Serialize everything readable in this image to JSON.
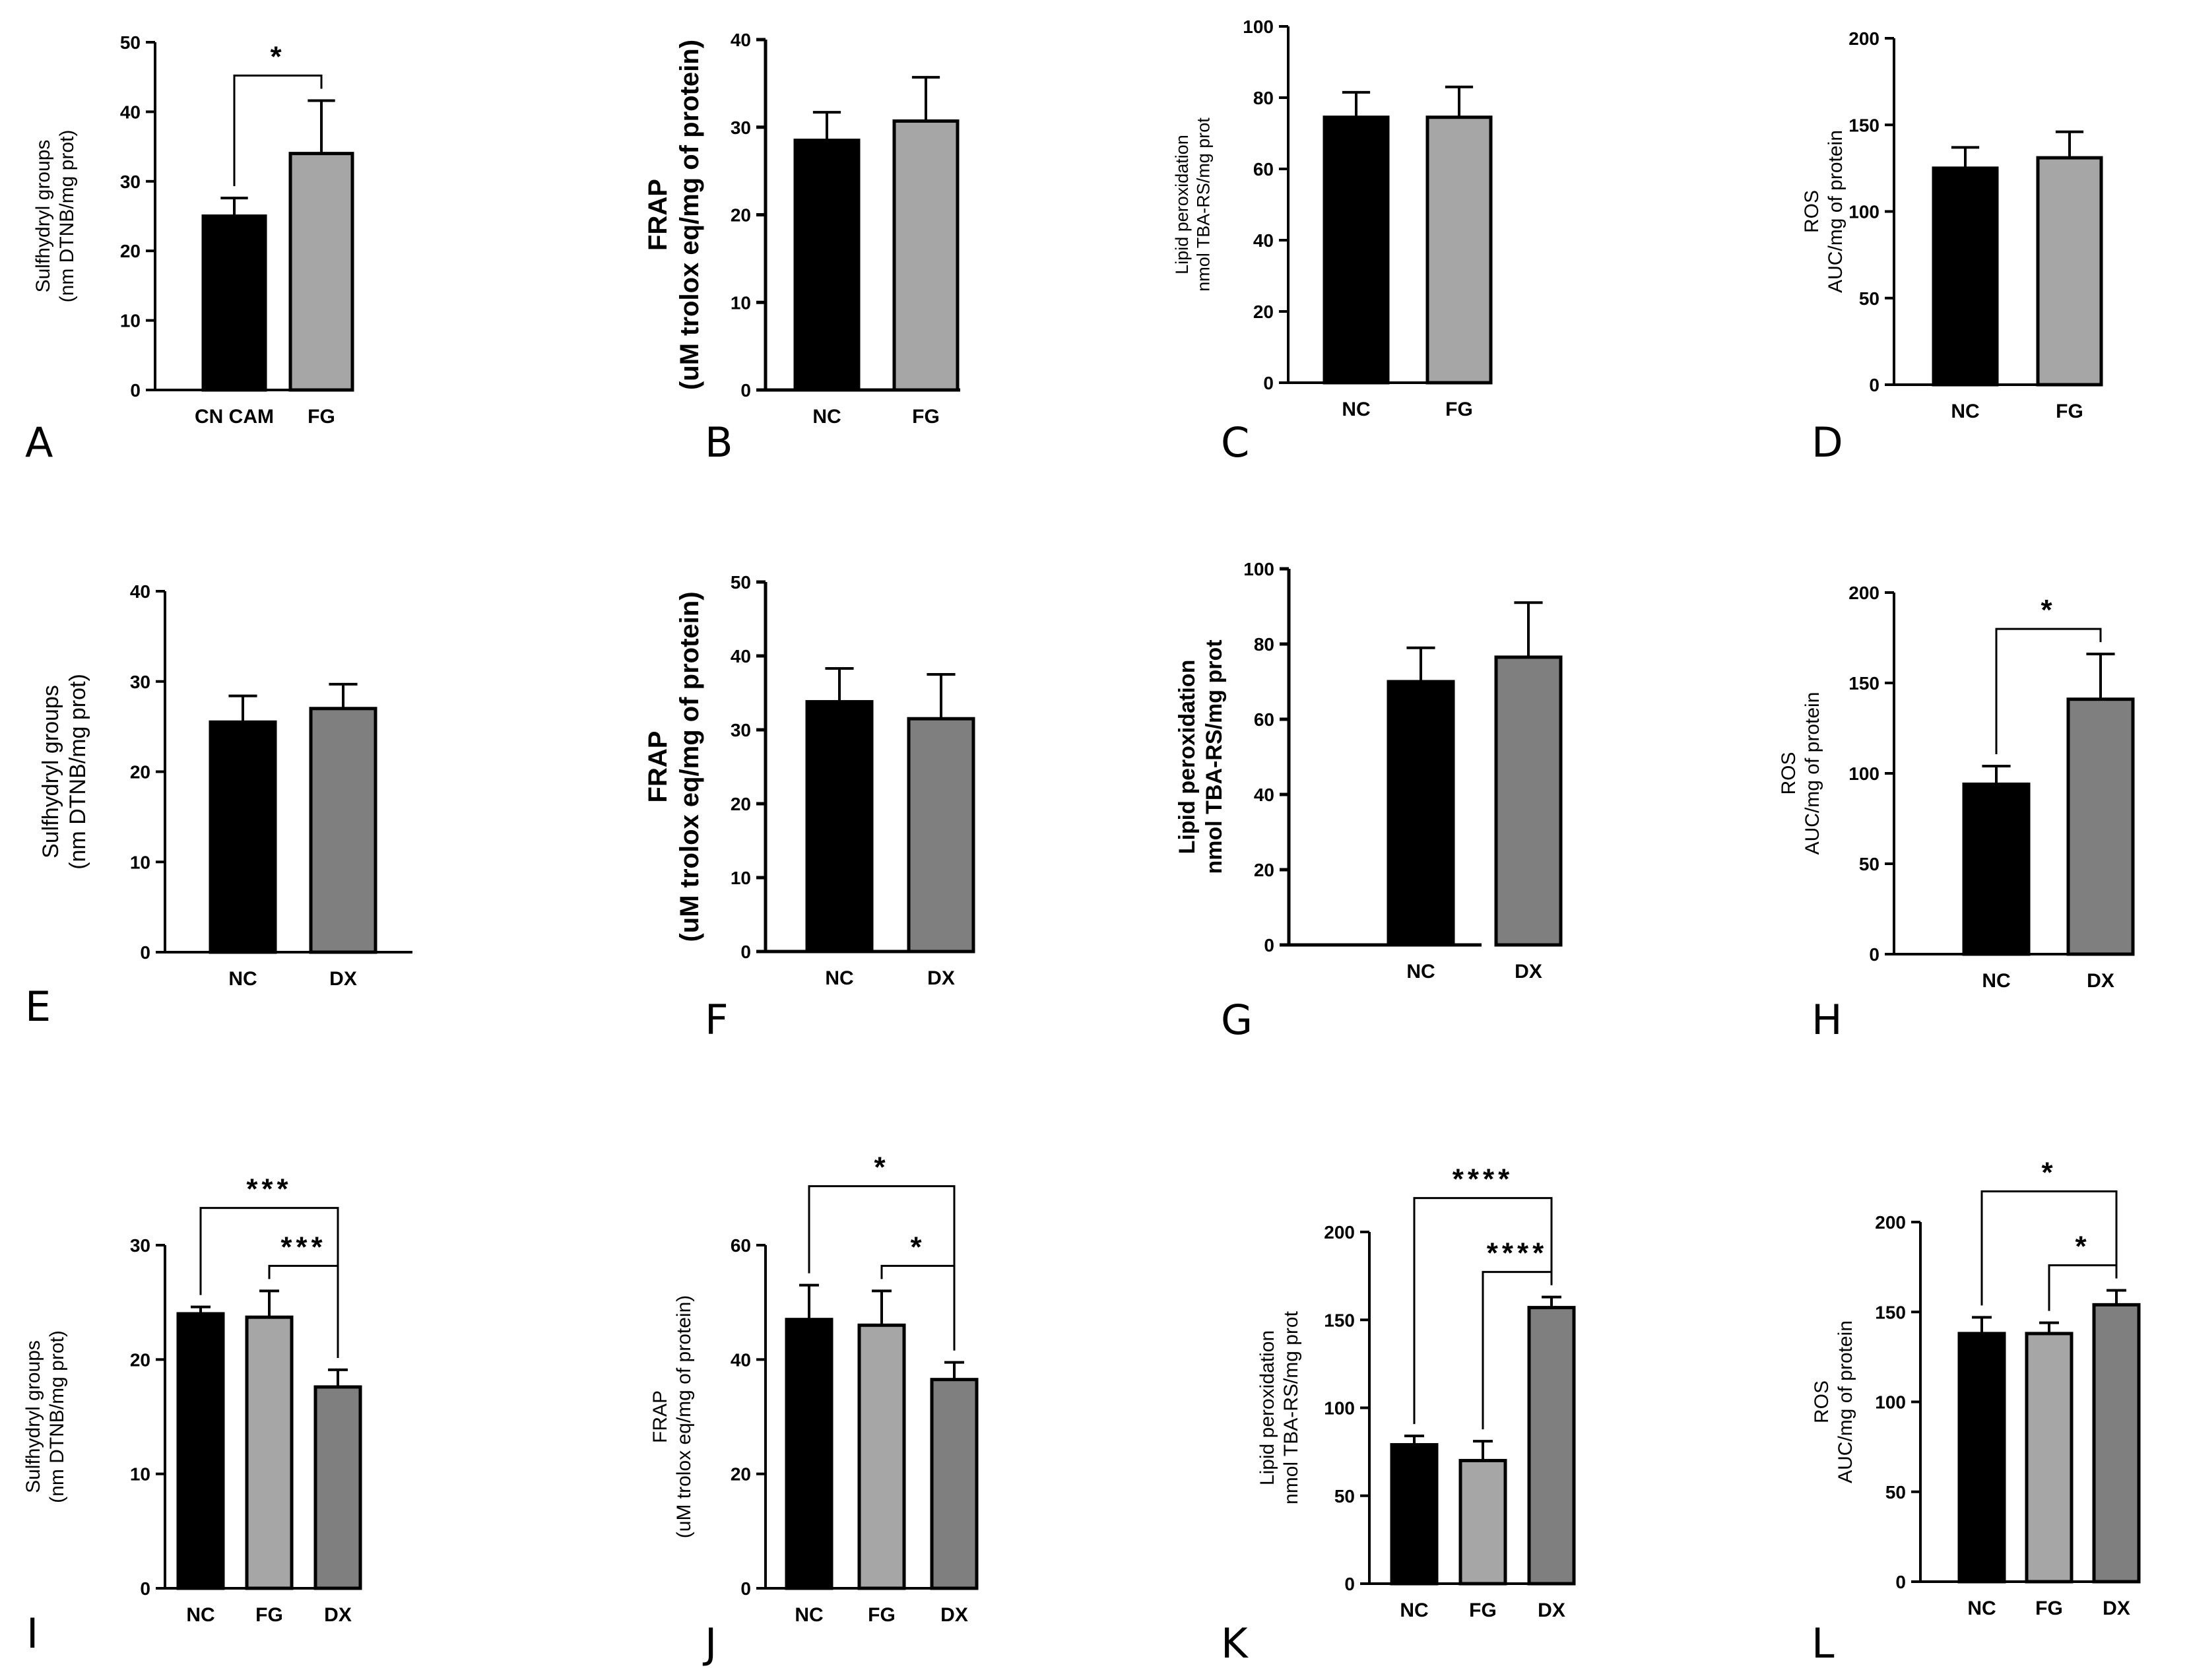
{
  "colors": {
    "NC": "#000000",
    "CN CAM": "#000000",
    "FG": "#a6a6a6",
    "DX": "#7f7f7f",
    "axis": "#000000"
  },
  "chart_data": [
    {
      "panel": "A",
      "type": "bar",
      "categories": [
        "CN CAM",
        "FG"
      ],
      "values": [
        25,
        34
      ],
      "errors": [
        2.6,
        7.6
      ],
      "ylabel": [
        "Sulfhydryl groups",
        "(nm DTNB/mg prot)"
      ],
      "ylim": [
        0,
        50
      ],
      "yticks": [
        0,
        10,
        20,
        30,
        40,
        50
      ],
      "significance": [
        {
          "from": 0,
          "to": 1,
          "label": "*",
          "level": 0
        }
      ]
    },
    {
      "panel": "B",
      "type": "bar",
      "categories": [
        "NC",
        "FG"
      ],
      "values": [
        28.5,
        30.7
      ],
      "errors": [
        3.2,
        5
      ],
      "ylabel": [
        "FRAP",
        "(uM trolox eq/mg of protein)"
      ],
      "ylim": [
        0,
        40
      ],
      "yticks": [
        0,
        10,
        20,
        30,
        40
      ],
      "significance": []
    },
    {
      "panel": "C",
      "type": "bar",
      "categories": [
        "NC",
        "FG"
      ],
      "values": [
        74.5,
        74.5
      ],
      "errors": [
        7,
        8.5
      ],
      "ylabel": [
        "Lipid peroxidation",
        "nmol TBA-RS/mg prot"
      ],
      "ylim": [
        0,
        100
      ],
      "yticks": [
        0,
        20,
        40,
        60,
        80,
        100
      ],
      "significance": []
    },
    {
      "panel": "D",
      "type": "bar",
      "categories": [
        "NC",
        "FG"
      ],
      "values": [
        125,
        131
      ],
      "errors": [
        12,
        15
      ],
      "ylabel": [
        "ROS",
        "AUC/mg of protein"
      ],
      "ylim": [
        0,
        200
      ],
      "yticks": [
        0,
        50,
        100,
        150,
        200
      ],
      "significance": []
    },
    {
      "panel": "E",
      "type": "bar",
      "categories": [
        "NC",
        "DX"
      ],
      "values": [
        25.5,
        27
      ],
      "errors": [
        2.9,
        2.7
      ],
      "ylabel": [
        "Sulfhydryl groups",
        "(nm DTNB/mg prot)"
      ],
      "ylim": [
        0,
        40
      ],
      "yticks": [
        0,
        10,
        20,
        30,
        40
      ],
      "significance": []
    },
    {
      "panel": "F",
      "type": "bar",
      "categories": [
        "NC",
        "DX"
      ],
      "values": [
        33.8,
        31.5
      ],
      "errors": [
        4.5,
        6
      ],
      "ylabel": [
        "FRAP",
        "(uM trolox eq/mg of protein)"
      ],
      "ylim": [
        0,
        50
      ],
      "yticks": [
        0,
        10,
        20,
        30,
        40,
        50
      ],
      "significance": []
    },
    {
      "panel": "G",
      "type": "bar",
      "categories": [
        "NC",
        "DX"
      ],
      "values": [
        70,
        76.5
      ],
      "errors": [
        9,
        14.5
      ],
      "ylabel": [
        "Lipid peroxidation",
        "nmol TBA-RS/mg prot"
      ],
      "ylim": [
        0,
        100
      ],
      "yticks": [
        0,
        20,
        40,
        60,
        80,
        100
      ],
      "significance": []
    },
    {
      "panel": "H",
      "type": "bar",
      "categories": [
        "NC",
        "DX"
      ],
      "values": [
        94,
        141
      ],
      "errors": [
        10,
        25
      ],
      "ylabel": [
        "ROS",
        "AUC/mg of protein"
      ],
      "ylim": [
        0,
        200
      ],
      "yticks": [
        0,
        50,
        100,
        150,
        200
      ],
      "significance": [
        {
          "from": 0,
          "to": 1,
          "label": "*",
          "level": 0
        }
      ]
    },
    {
      "panel": "I",
      "type": "bar",
      "categories": [
        "NC",
        "FG",
        "DX"
      ],
      "values": [
        24,
        23.7,
        17.6
      ],
      "errors": [
        0.6,
        2.3,
        1.5
      ],
      "ylabel": [
        "Sulfhydryl groups",
        "(nm DTNB/mg prot)"
      ],
      "ylim": [
        0,
        30
      ],
      "yticks": [
        0,
        10,
        20,
        30
      ],
      "significance": [
        {
          "from": 1,
          "to": 2,
          "label": "***",
          "level": 0
        },
        {
          "from": 0,
          "to": 2,
          "label": "***",
          "level": 1
        }
      ]
    },
    {
      "panel": "J",
      "type": "bar",
      "categories": [
        "NC",
        "FG",
        "DX"
      ],
      "values": [
        47,
        46,
        36.5
      ],
      "errors": [
        6,
        6,
        3
      ],
      "ylabel": [
        "FRAP",
        "(uM trolox eq/mg of protein)"
      ],
      "ylim": [
        0,
        60
      ],
      "yticks": [
        0,
        20,
        40,
        60
      ],
      "significance": [
        {
          "from": 1,
          "to": 2,
          "label": "*",
          "level": 0
        },
        {
          "from": 0,
          "to": 2,
          "label": "*",
          "level": 1
        }
      ]
    },
    {
      "panel": "K",
      "type": "bar",
      "categories": [
        "NC",
        "FG",
        "DX"
      ],
      "values": [
        79,
        70,
        157
      ],
      "errors": [
        5,
        11,
        6
      ],
      "ylabel": [
        "Lipid peroxidation",
        "nmol TBA-RS/mg prot"
      ],
      "ylim": [
        0,
        200
      ],
      "yticks": [
        0,
        50,
        100,
        150,
        200
      ],
      "significance": [
        {
          "from": 1,
          "to": 2,
          "label": "****",
          "level": 0
        },
        {
          "from": 0,
          "to": 2,
          "label": "****",
          "level": 1
        }
      ]
    },
    {
      "panel": "L",
      "type": "bar",
      "categories": [
        "NC",
        "FG",
        "DX"
      ],
      "values": [
        138,
        138,
        154
      ],
      "errors": [
        9,
        6,
        8
      ],
      "ylabel": [
        "ROS",
        "AUC/mg of protein"
      ],
      "ylim": [
        0,
        200
      ],
      "yticks": [
        0,
        50,
        100,
        150,
        200
      ],
      "significance": [
        {
          "from": 1,
          "to": 2,
          "label": "*",
          "level": 0
        },
        {
          "from": 0,
          "to": 2,
          "label": "*",
          "level": 1
        }
      ]
    }
  ]
}
